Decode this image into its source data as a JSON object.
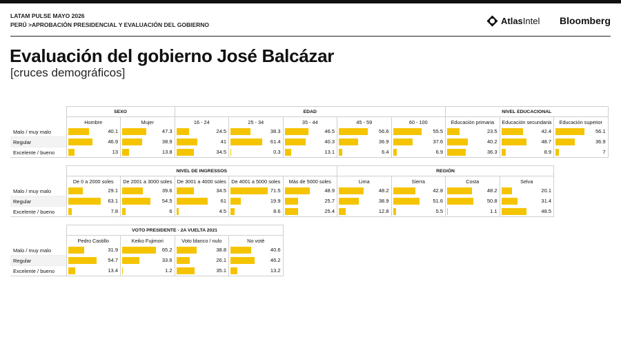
{
  "header": {
    "line1": "LATAM PULSE MAYO 2026",
    "line2": "PERÚ >APROBACIÓN PRESIDENCIAL Y EVALUACIÓN DEL GOBIERNO",
    "atlas_logo_bold": "Atlas",
    "atlas_logo_rest": "Intel",
    "bloomberg_logo": "Bloomberg"
  },
  "title": "Evaluación del gobierno José Balcázar",
  "subtitle": "[cruces demográficos]",
  "colors": {
    "bar": "#f5c400",
    "text": "#111111"
  },
  "chart_data": [
    {
      "type": "table",
      "row_labels": [
        "Malo / muy malo",
        "Regular",
        "Excelente / bueno"
      ],
      "groups": [
        {
          "name": "SEXO",
          "columns": [
            {
              "name": "Hombre",
              "values": [
                40.1,
                46.9,
                13
              ]
            },
            {
              "name": "Mujer",
              "values": [
                47.3,
                38.9,
                13.8
              ]
            }
          ]
        },
        {
          "name": "EDAD",
          "columns": [
            {
              "name": "16 - 24",
              "values": [
                24.5,
                41,
                34.5
              ]
            },
            {
              "name": "25 - 34",
              "values": [
                38.3,
                61.4,
                0.3
              ]
            },
            {
              "name": "35 - 44",
              "values": [
                46.5,
                40.3,
                13.1
              ]
            },
            {
              "name": "45 - 59",
              "values": [
                56.6,
                36.9,
                6.4
              ]
            },
            {
              "name": "60 - 100",
              "values": [
                55.5,
                37.6,
                6.9
              ]
            }
          ]
        },
        {
          "name": "NIVEL EDUCACIONAL",
          "columns": [
            {
              "name": "Educación primaria",
              "values": [
                23.5,
                40.2,
                36.3
              ]
            },
            {
              "name": "Educación secundaria",
              "values": [
                42.4,
                48.7,
                8.9
              ]
            },
            {
              "name": "Educación superior",
              "values": [
                56.1,
                36.9,
                7
              ]
            }
          ]
        }
      ]
    },
    {
      "type": "table",
      "row_labels": [
        "Malo / muy malo",
        "Regular",
        "Excelente / bueno"
      ],
      "groups": [
        {
          "name": "NIVEL DE INGRESSOS",
          "columns": [
            {
              "name": "De 0 a 2000 soles",
              "values": [
                29.1,
                63.1,
                7.8
              ]
            },
            {
              "name": "De 2001 a 3000 soles",
              "values": [
                39.6,
                54.5,
                6
              ]
            },
            {
              "name": "De 3001 a 4000 soles",
              "values": [
                34.5,
                61,
                4.5
              ]
            },
            {
              "name": "De 4001 a 5000 soles",
              "values": [
                71.5,
                19.9,
                8.6
              ]
            },
            {
              "name": "Más de 5000 soles",
              "values": [
                48.9,
                25.7,
                25.4
              ]
            }
          ]
        },
        {
          "name": "REGIÓN",
          "columns": [
            {
              "name": "Lima",
              "values": [
                48.2,
                38.9,
                12.8
              ]
            },
            {
              "name": "Sierra",
              "values": [
                42.8,
                51.6,
                5.5
              ]
            },
            {
              "name": "Costa",
              "values": [
                48.2,
                50.8,
                1.1
              ]
            },
            {
              "name": "Selva",
              "values": [
                20.1,
                31.4,
                48.5
              ]
            }
          ]
        }
      ]
    },
    {
      "type": "table",
      "row_labels": [
        "Malo / muy malo",
        "Regular",
        "Excelente / bueno"
      ],
      "groups": [
        {
          "name": "VOTO PRESIDENTE - 2A VUELTA 2021",
          "columns": [
            {
              "name": "Pedro Castillo",
              "values": [
                31.9,
                54.7,
                13.4
              ]
            },
            {
              "name": "Keiko Fujimori",
              "values": [
                65.2,
                33.6,
                1.2
              ]
            },
            {
              "name": "Voto blanco / nulo",
              "values": [
                38.8,
                26.1,
                35.1
              ]
            },
            {
              "name": "No voté",
              "values": [
                40.6,
                46.2,
                13.2
              ]
            }
          ]
        }
      ]
    }
  ]
}
